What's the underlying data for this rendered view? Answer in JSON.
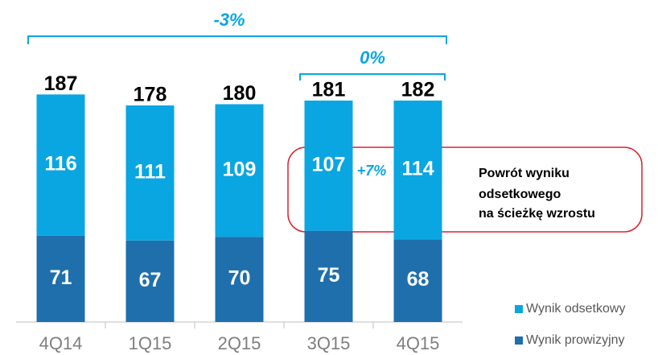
{
  "chart_data": {
    "type": "stacked_bar",
    "categories": [
      "4Q14",
      "1Q15",
      "2Q15",
      "3Q15",
      "4Q15"
    ],
    "series": [
      {
        "name": "Wynik prowizyjny",
        "color": "#1f6fad",
        "values": [
          71,
          67,
          70,
          75,
          68
        ]
      },
      {
        "name": "Wynik odsetkowy",
        "color": "#0aa6e2",
        "values": [
          116,
          111,
          109,
          107,
          114
        ]
      }
    ],
    "totals": [
      187,
      178,
      180,
      181,
      182
    ],
    "ylim": [
      0,
      260
    ],
    "annotations": {
      "change_all": "-3%",
      "change_last": "0%",
      "change_interest": "+7%",
      "callout": [
        "Powrót  wyniku",
        "odsetkowego",
        "na ścieżkę wzrostu"
      ]
    },
    "legend": "bottom-right"
  }
}
